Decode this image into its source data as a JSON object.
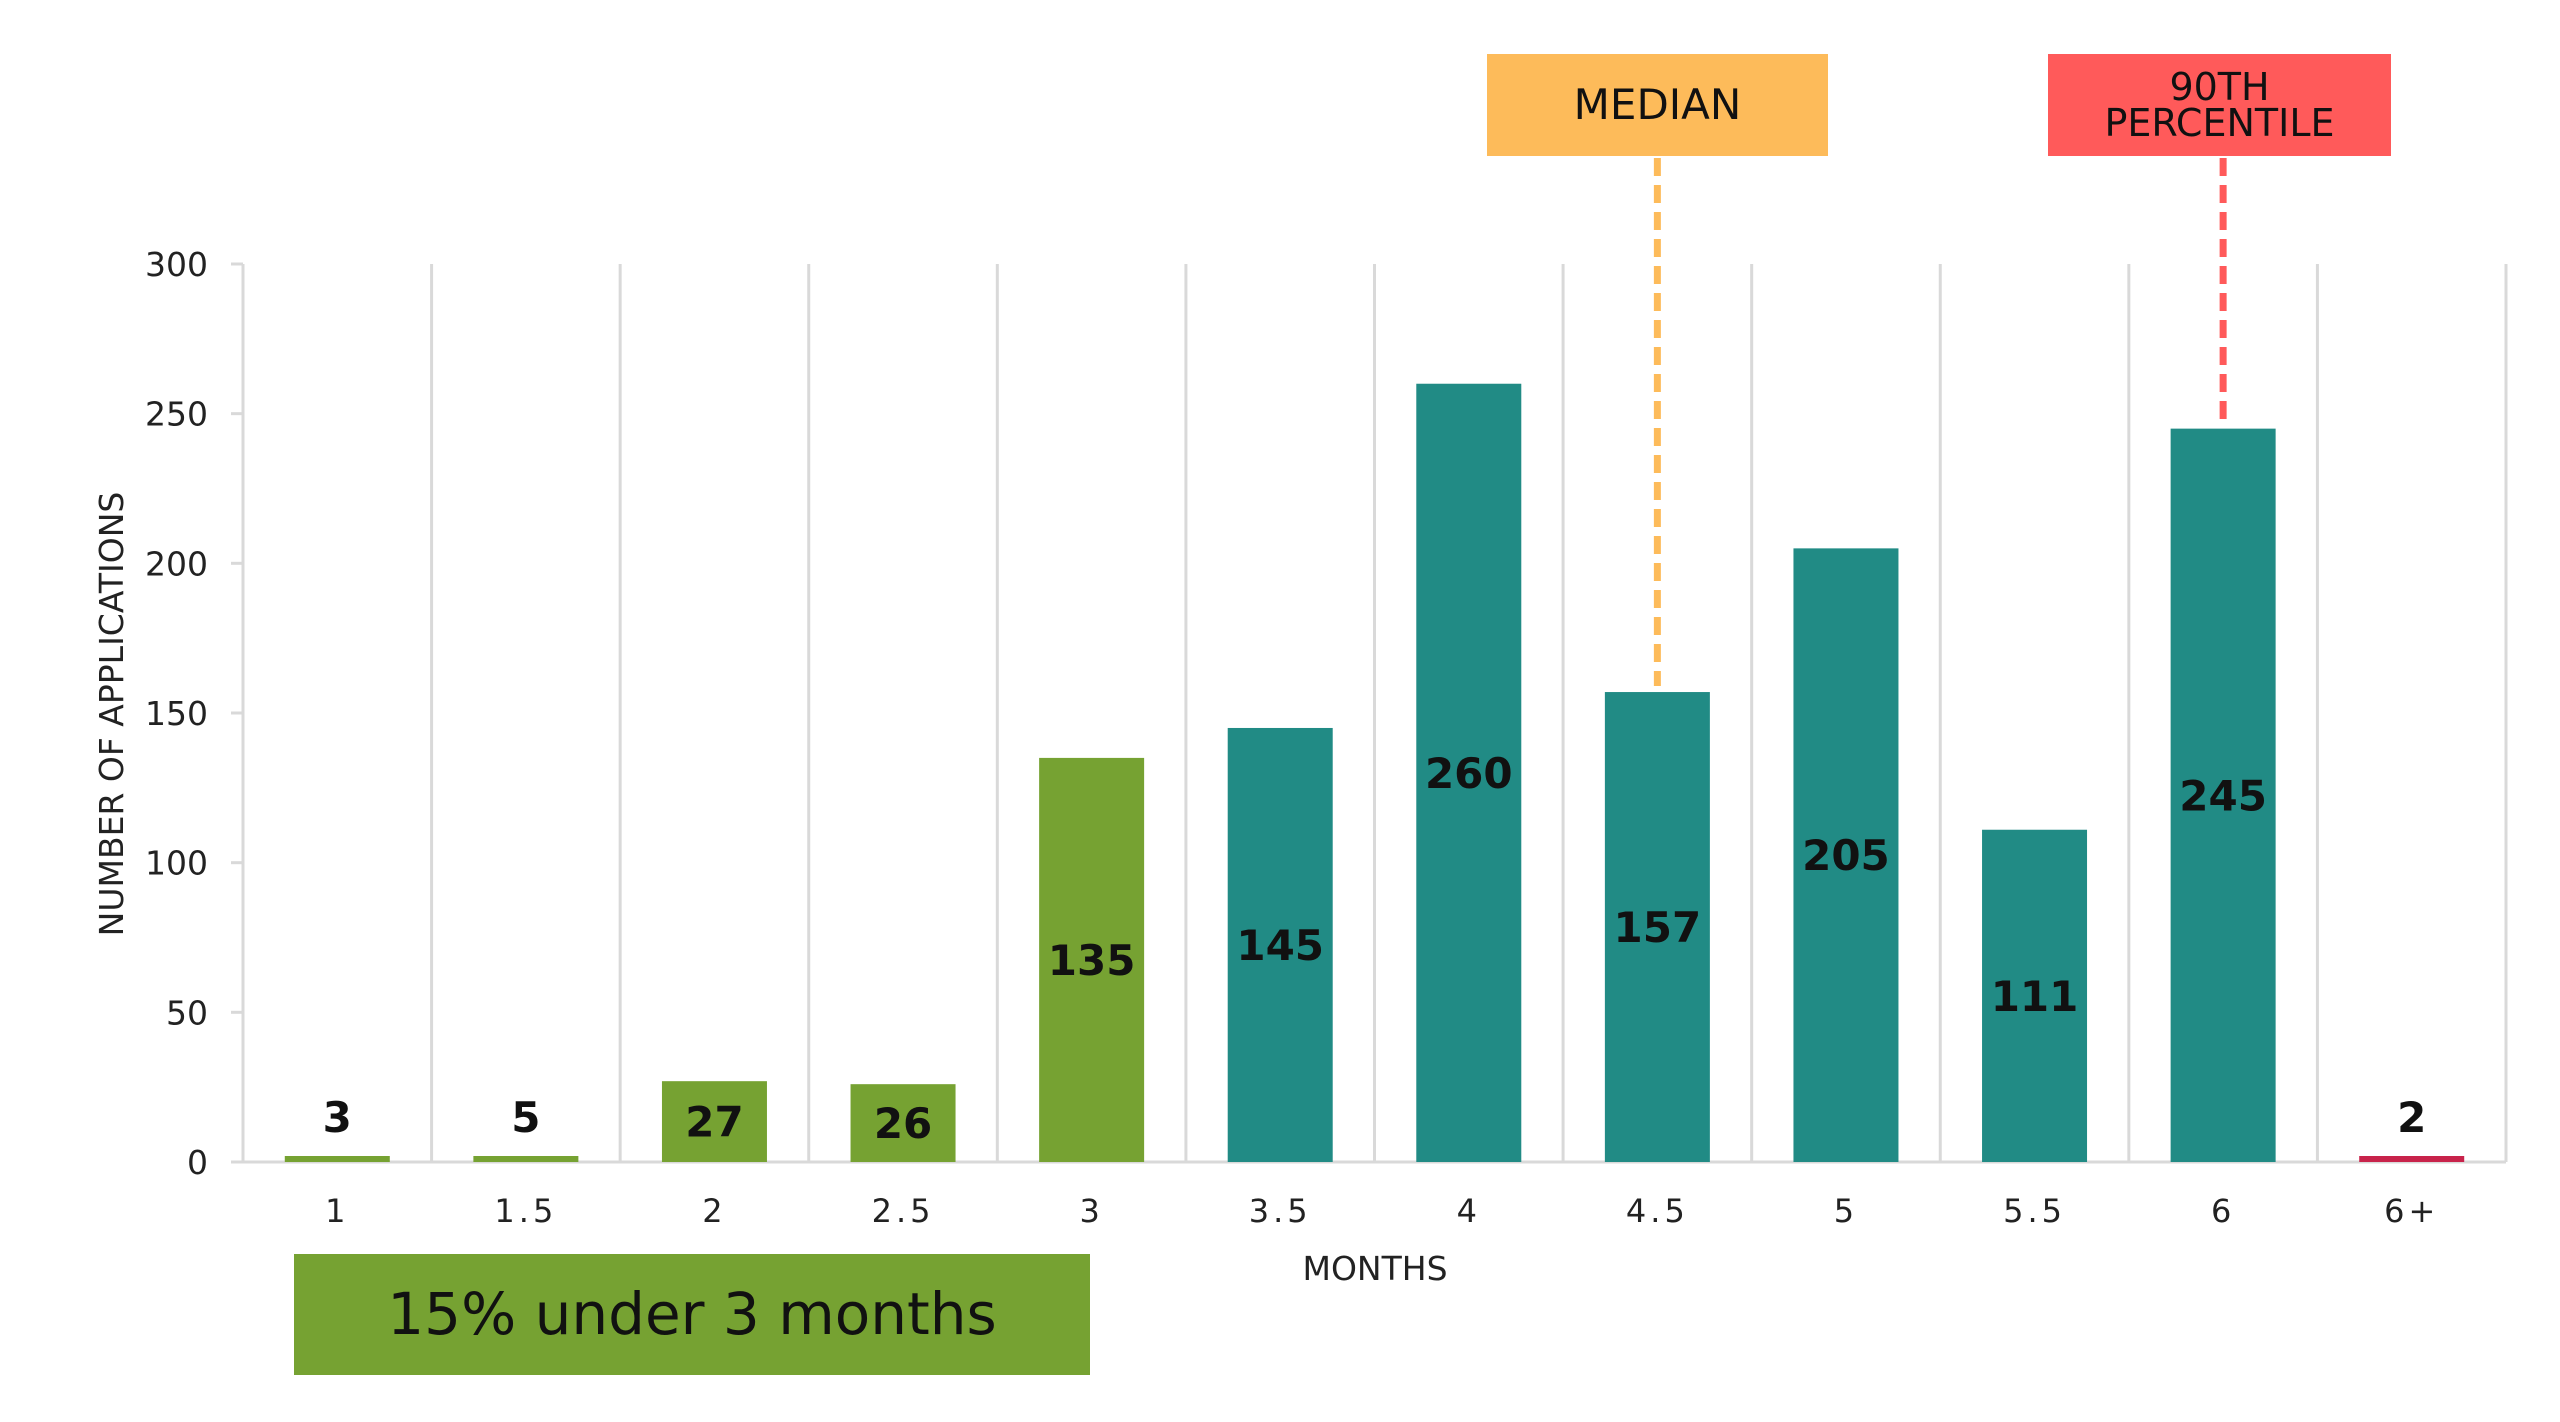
{
  "chart_data": {
    "type": "bar",
    "categories": [
      "1",
      "1.5",
      "2",
      "2.5",
      "3",
      "3.5",
      "4",
      "4.5",
      "5",
      "5.5",
      "6",
      "6+"
    ],
    "values": [
      3,
      5,
      27,
      26,
      135,
      145,
      260,
      157,
      205,
      111,
      245,
      2
    ],
    "bar_colors": [
      "#76A232",
      "#76A232",
      "#76A232",
      "#76A232",
      "#76A232",
      "#218B85",
      "#218B85",
      "#218B85",
      "#218B85",
      "#218B85",
      "#218B85",
      "#C8234B"
    ],
    "xlabel": "MONTHS",
    "ylabel": "NUMBER OF APPLICATIONS",
    "ylim": [
      0,
      300
    ],
    "yticks": [
      0,
      50,
      100,
      150,
      200,
      250,
      300
    ],
    "grid": "vertical category separators",
    "annotations": {
      "median": {
        "label": "MEDIAN",
        "category": "4.5",
        "color": "#FDBB5A"
      },
      "p90": {
        "label": "90TH PERCENTILE",
        "category": "6",
        "color": "#FF5A5A"
      },
      "callout": {
        "label": "15% under 3 months",
        "color": "#76A232"
      }
    }
  }
}
